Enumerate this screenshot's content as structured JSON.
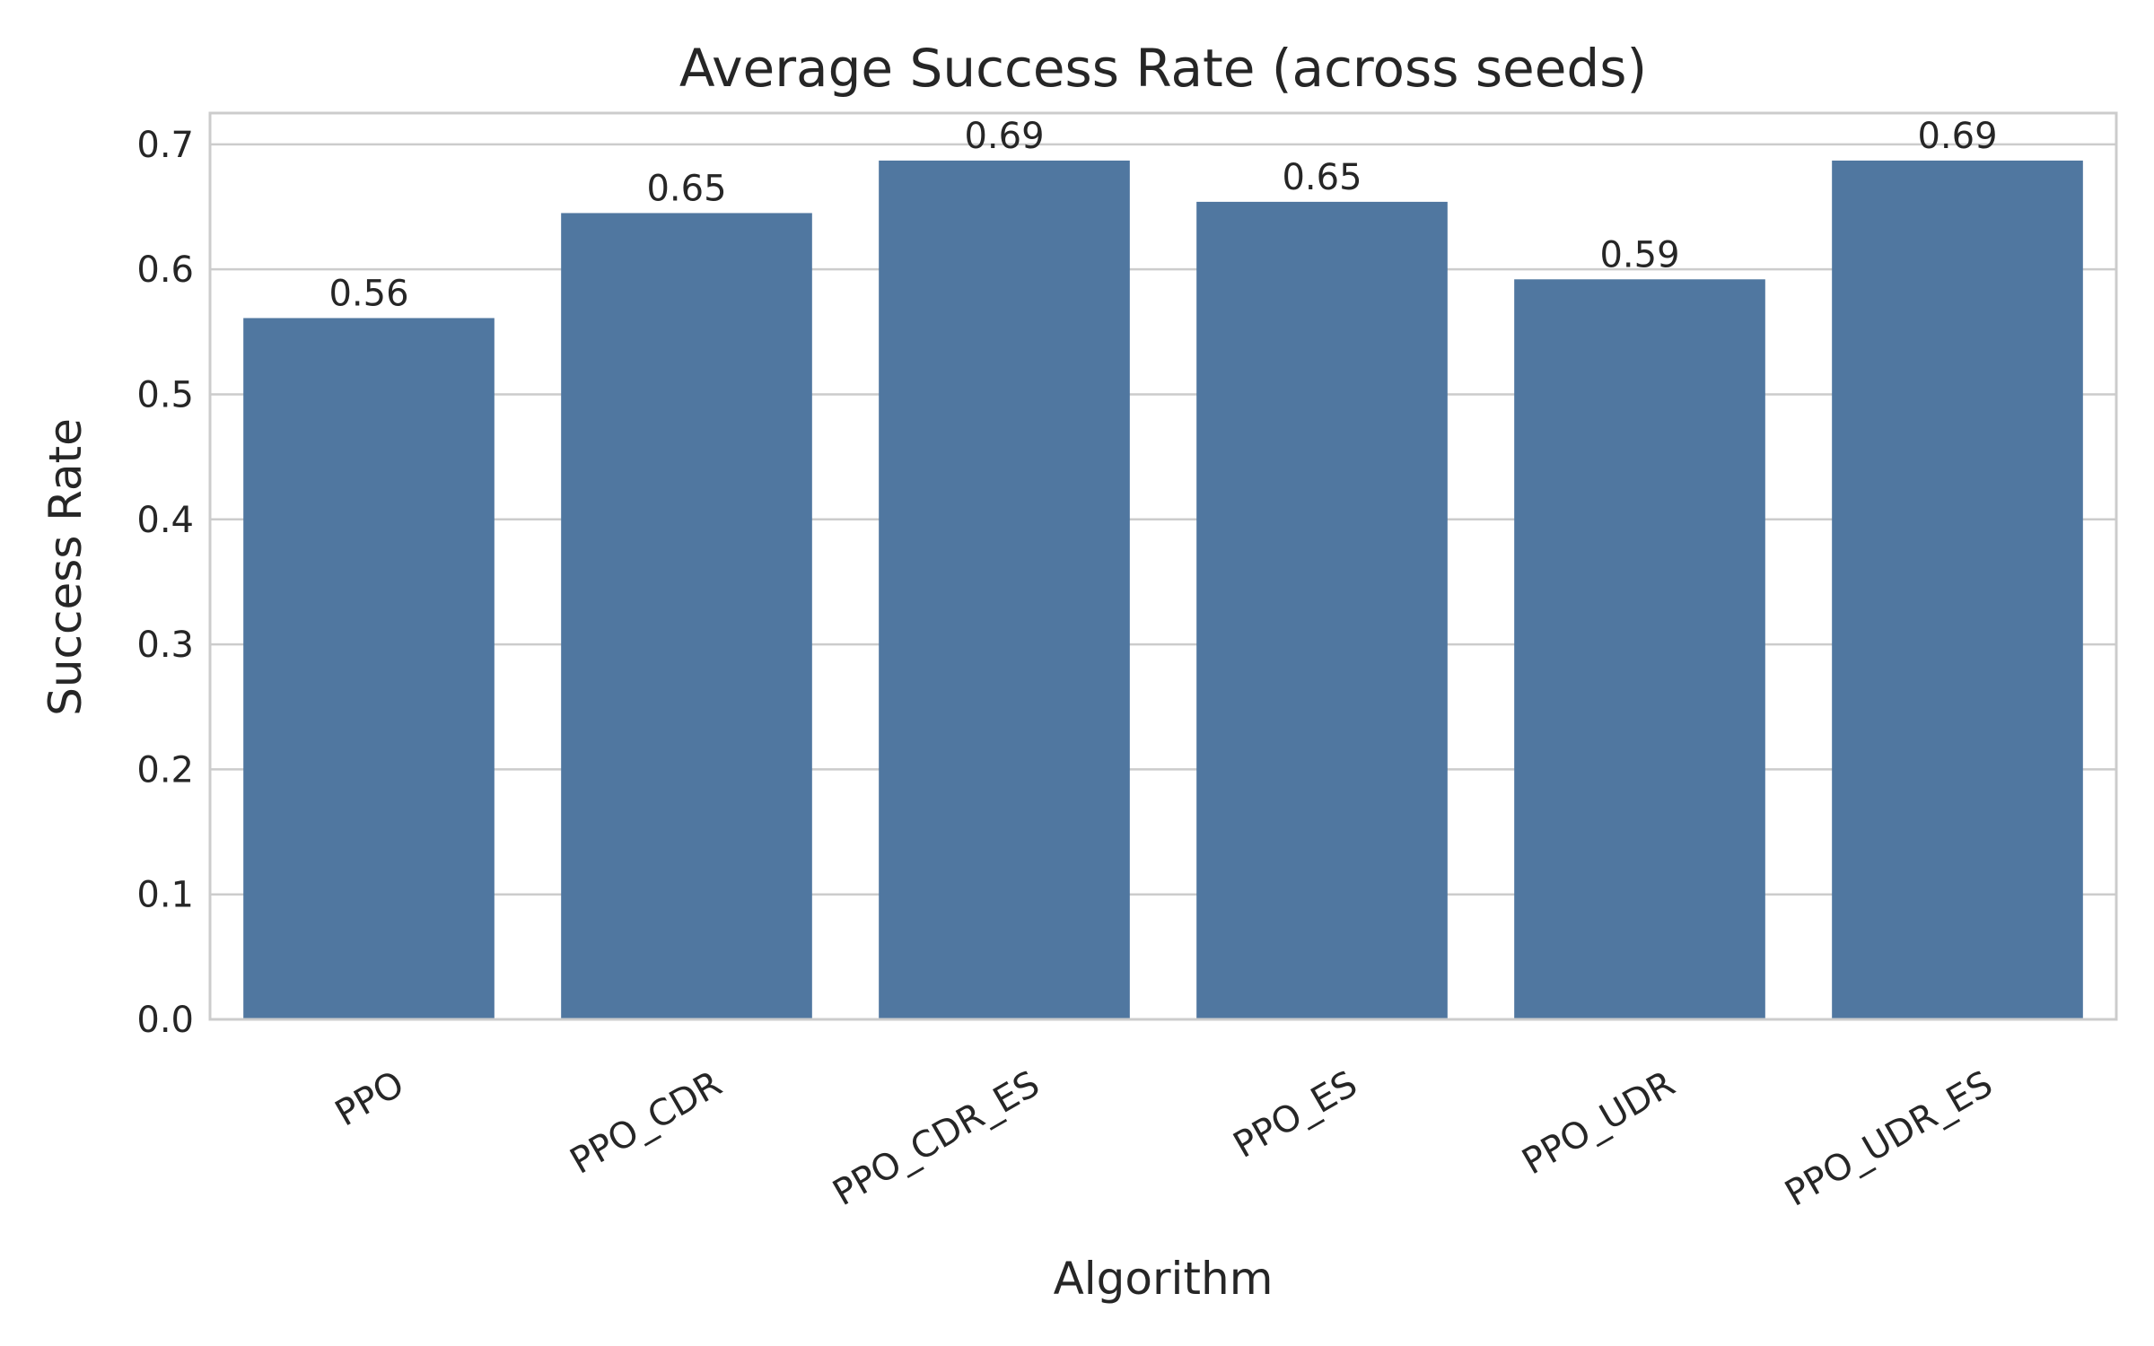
{
  "chart_data": {
    "type": "bar",
    "title": "Average Success Rate (across seeds)",
    "xlabel": "Algorithm",
    "ylabel": "Success Rate",
    "categories": [
      "PPO",
      "PPO_CDR",
      "PPO_CDR_ES",
      "PPO_ES",
      "PPO_UDR",
      "PPO_UDR_ES"
    ],
    "values": [
      0.561,
      0.645,
      0.687,
      0.654,
      0.592,
      0.687
    ],
    "data_labels": [
      "0.56",
      "0.65",
      "0.69",
      "0.65",
      "0.59",
      "0.69"
    ],
    "ylim": [
      0,
      0.725
    ],
    "yticks": [
      0.0,
      0.1,
      0.2,
      0.3,
      0.4,
      0.5,
      0.6,
      0.7
    ],
    "ytick_labels": [
      "0.0",
      "0.1",
      "0.2",
      "0.3",
      "0.4",
      "0.5",
      "0.6",
      "0.7"
    ],
    "grid": "horizontal",
    "bar_color": "#5077a0",
    "grid_color": "#cccccc",
    "frame_color": "#cccccc",
    "text_color": "#262626"
  }
}
